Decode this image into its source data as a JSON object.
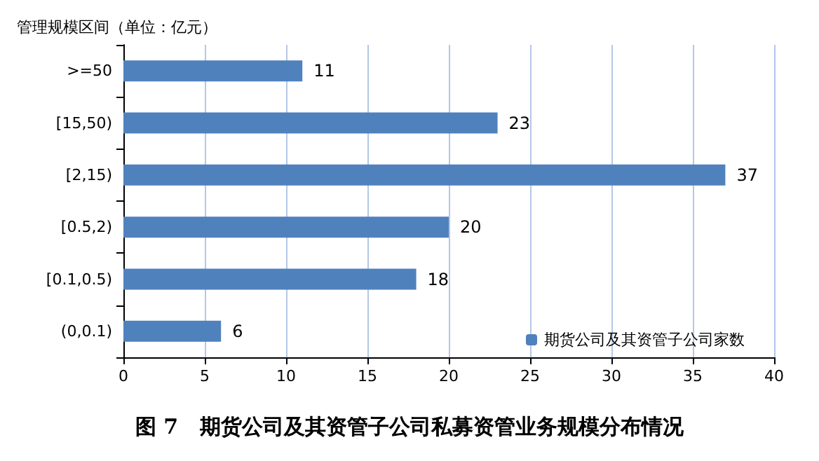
{
  "chart_data": {
    "type": "bar",
    "orientation": "horizontal",
    "title": "图 7   期货公司及其资管子公司私募资管业务规模分布情况",
    "ylabel": "管理规模区间（单位：亿元）",
    "categories": [
      ">=50",
      "[15,50)",
      "[2,15)",
      "[0.5,2)",
      "[0.1,0.5)",
      "(0,0.1)"
    ],
    "series": [
      {
        "name": "期货公司及其资管子公司家数",
        "color": "#4f81bd",
        "values": [
          11,
          23,
          37,
          20,
          18,
          6
        ]
      }
    ],
    "xlim": [
      0,
      40
    ],
    "xticks": [
      0,
      5,
      10,
      15,
      20,
      25,
      30,
      35,
      40
    ],
    "grid": "x",
    "legend": "bottom right",
    "data_labels": true
  }
}
